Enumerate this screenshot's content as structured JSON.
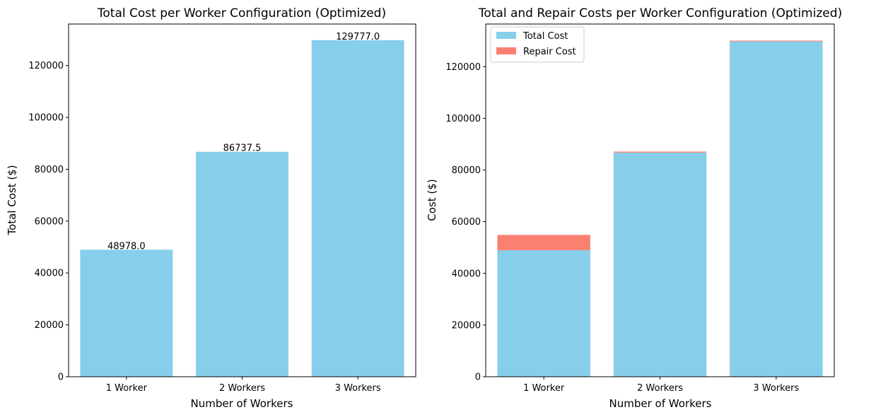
{
  "chart_data": [
    {
      "type": "bar",
      "title": "Total Cost per Worker Configuration (Optimized)",
      "xlabel": "Number of Workers",
      "ylabel": "Total Cost ($)",
      "categories": [
        "1 Worker",
        "2 Workers",
        "3 Workers"
      ],
      "series": [
        {
          "values": [
            48978.0,
            86737.5,
            129777.0
          ],
          "color": "#87CEEB"
        }
      ],
      "data_labels": [
        "48978.0",
        "86737.5",
        "129777.0"
      ],
      "ylim": [
        0,
        136000
      ],
      "yticks": [
        0,
        20000,
        40000,
        60000,
        80000,
        100000,
        120000
      ],
      "grid": false
    },
    {
      "type": "bar",
      "stacked": true,
      "title": "Total and Repair Costs per Worker Configuration (Optimized)",
      "xlabel": "Number of Workers",
      "ylabel": "Cost ($)",
      "categories": [
        "1 Worker",
        "2 Workers",
        "3 Workers"
      ],
      "series": [
        {
          "name": "Total Cost",
          "values": [
            48978.0,
            86737.5,
            129777.0
          ],
          "color": "#87CEEB"
        },
        {
          "name": "Repair Cost",
          "values": [
            5900,
            400,
            300
          ],
          "color": "#FA8072"
        }
      ],
      "ylim": [
        0,
        136500
      ],
      "yticks": [
        0,
        20000,
        40000,
        60000,
        80000,
        100000,
        120000
      ],
      "legend_position": "top-left",
      "grid": false
    }
  ]
}
